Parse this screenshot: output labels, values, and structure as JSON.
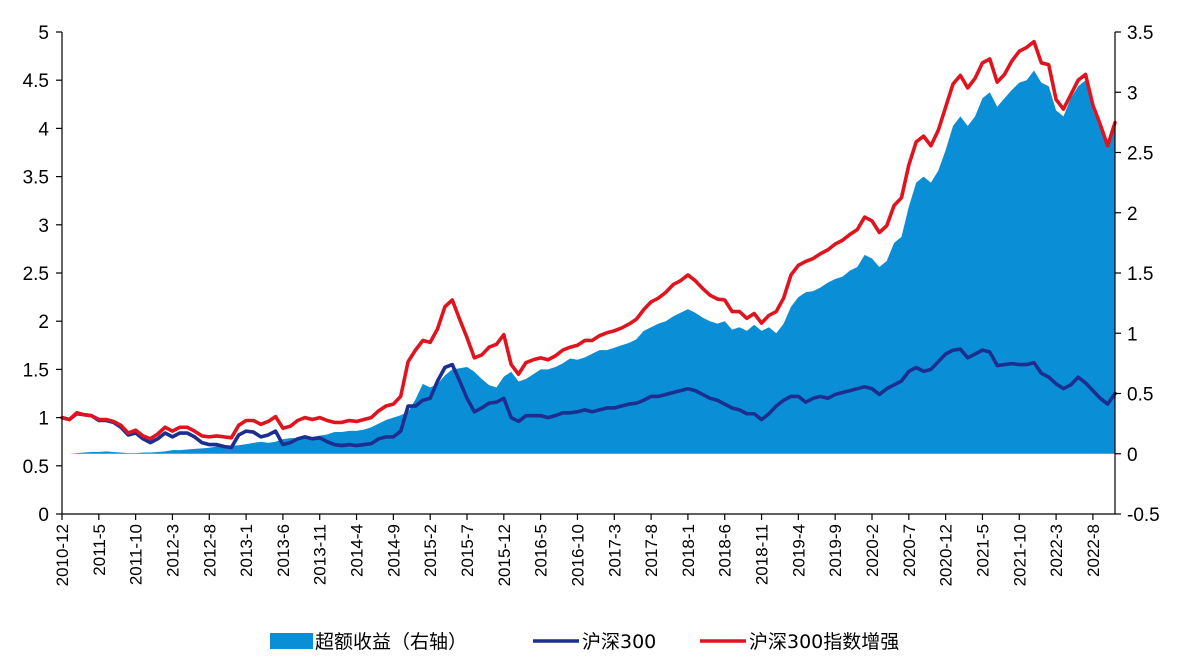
{
  "chart_data": {
    "type": "line",
    "title": "",
    "xlabel": "",
    "ylabel": "",
    "y_left": {
      "min": 0,
      "max": 5,
      "ticks": [
        0,
        0.5,
        1,
        1.5,
        2,
        2.5,
        3,
        3.5,
        4,
        4.5,
        5
      ],
      "tick_labels": [
        "0",
        "0.5",
        "1",
        "1.5",
        "2",
        "2.5",
        "3",
        "3.5",
        "4",
        "4.5",
        "5"
      ]
    },
    "y_right": {
      "min": -0.5,
      "max": 3.5,
      "ticks": [
        -0.5,
        0,
        0.5,
        1,
        1.5,
        2,
        2.5,
        3,
        3.5
      ],
      "tick_labels": [
        "-0.5",
        "0",
        "0.5",
        "1",
        "1.5",
        "2",
        "2.5",
        "3",
        "3.5"
      ]
    },
    "x_tick_labels": [
      "2010-12",
      "2011-5",
      "2011-10",
      "2012-3",
      "2012-8",
      "2013-1",
      "2013-6",
      "2013-11",
      "2014-4",
      "2014-9",
      "2015-2",
      "2015-7",
      "2015-12",
      "2016-5",
      "2016-10",
      "2017-3",
      "2017-8",
      "2018-1",
      "2018-6",
      "2018-11",
      "2019-4",
      "2019-9",
      "2020-2",
      "2020-7",
      "2020-12",
      "2021-5",
      "2021-10",
      "2022-3",
      "2022-8"
    ],
    "x_months": [
      "2010-12",
      "2011-1",
      "2011-2",
      "2011-3",
      "2011-4",
      "2011-5",
      "2011-6",
      "2011-7",
      "2011-8",
      "2011-9",
      "2011-10",
      "2011-11",
      "2011-12",
      "2012-1",
      "2012-2",
      "2012-3",
      "2012-4",
      "2012-5",
      "2012-6",
      "2012-7",
      "2012-8",
      "2012-9",
      "2012-10",
      "2012-11",
      "2012-12",
      "2013-1",
      "2013-2",
      "2013-3",
      "2013-4",
      "2013-5",
      "2013-6",
      "2013-7",
      "2013-8",
      "2013-9",
      "2013-10",
      "2013-11",
      "2013-12",
      "2014-1",
      "2014-2",
      "2014-3",
      "2014-4",
      "2014-5",
      "2014-6",
      "2014-7",
      "2014-8",
      "2014-9",
      "2014-10",
      "2014-11",
      "2014-12",
      "2015-1",
      "2015-2",
      "2015-3",
      "2015-4",
      "2015-5",
      "2015-6",
      "2015-7",
      "2015-8",
      "2015-9",
      "2015-10",
      "2015-11",
      "2015-12",
      "2016-1",
      "2016-2",
      "2016-3",
      "2016-4",
      "2016-5",
      "2016-6",
      "2016-7",
      "2016-8",
      "2016-9",
      "2016-10",
      "2016-11",
      "2016-12",
      "2017-1",
      "2017-2",
      "2017-3",
      "2017-4",
      "2017-5",
      "2017-6",
      "2017-7",
      "2017-8",
      "2017-9",
      "2017-10",
      "2017-11",
      "2017-12",
      "2018-1",
      "2018-2",
      "2018-3",
      "2018-4",
      "2018-5",
      "2018-6",
      "2018-7",
      "2018-8",
      "2018-9",
      "2018-10",
      "2018-11",
      "2018-12",
      "2019-1",
      "2019-2",
      "2019-3",
      "2019-4",
      "2019-5",
      "2019-6",
      "2019-7",
      "2019-8",
      "2019-9",
      "2019-10",
      "2019-11",
      "2019-12",
      "2020-1",
      "2020-2",
      "2020-3",
      "2020-4",
      "2020-5",
      "2020-6",
      "2020-7",
      "2020-8",
      "2020-9",
      "2020-10",
      "2020-11",
      "2020-12",
      "2021-1",
      "2021-2",
      "2021-3",
      "2021-4",
      "2021-5",
      "2021-6",
      "2021-7",
      "2021-8",
      "2021-9",
      "2021-10",
      "2021-11",
      "2021-12",
      "2022-1",
      "2022-2",
      "2022-3",
      "2022-4",
      "2022-5",
      "2022-6",
      "2022-7",
      "2022-8",
      "2022-9",
      "2022-10",
      "2022-11"
    ],
    "legend_position": "bottom",
    "grid": false,
    "series": [
      {
        "name": "超额收益（右轴）",
        "type": "area",
        "axis": "right",
        "color": "#0a8fd6",
        "values": [
          0,
          0,
          0.005,
          0.01,
          0.015,
          0.015,
          0.02,
          0.015,
          0.01,
          0.005,
          0.005,
          0.01,
          0.01,
          0.015,
          0.02,
          0.03,
          0.03,
          0.035,
          0.04,
          0.045,
          0.05,
          0.06,
          0.06,
          0.065,
          0.07,
          0.08,
          0.09,
          0.1,
          0.09,
          0.1,
          0.12,
          0.13,
          0.13,
          0.14,
          0.14,
          0.15,
          0.16,
          0.18,
          0.18,
          0.19,
          0.19,
          0.2,
          0.22,
          0.25,
          0.28,
          0.3,
          0.32,
          0.35,
          0.45,
          0.58,
          0.55,
          0.58,
          0.65,
          0.7,
          0.71,
          0.72,
          0.68,
          0.62,
          0.57,
          0.55,
          0.64,
          0.68,
          0.6,
          0.62,
          0.66,
          0.7,
          0.7,
          0.72,
          0.75,
          0.79,
          0.78,
          0.8,
          0.83,
          0.86,
          0.86,
          0.88,
          0.9,
          0.92,
          0.95,
          1.02,
          1.05,
          1.08,
          1.1,
          1.14,
          1.17,
          1.2,
          1.17,
          1.13,
          1.1,
          1.08,
          1.1,
          1.03,
          1.05,
          1.02,
          1.07,
          1.02,
          1.05,
          1.0,
          1.08,
          1.22,
          1.3,
          1.34,
          1.35,
          1.38,
          1.42,
          1.45,
          1.47,
          1.52,
          1.55,
          1.65,
          1.62,
          1.55,
          1.6,
          1.75,
          1.8,
          2.05,
          2.25,
          2.3,
          2.25,
          2.35,
          2.52,
          2.72,
          2.8,
          2.72,
          2.8,
          2.95,
          3.0,
          2.88,
          2.95,
          3.02,
          3.08,
          3.1,
          3.18,
          3.08,
          3.05,
          2.85,
          2.8,
          2.95,
          3.05,
          3.1,
          2.85,
          2.7,
          2.6,
          2.72
        ]
      },
      {
        "name": "沪深300",
        "type": "line",
        "axis": "left",
        "color": "#1c2e8f",
        "values": [
          1.0,
          0.98,
          1.04,
          1.03,
          1.02,
          0.97,
          0.97,
          0.95,
          0.9,
          0.82,
          0.84,
          0.78,
          0.74,
          0.78,
          0.84,
          0.8,
          0.84,
          0.84,
          0.8,
          0.74,
          0.72,
          0.72,
          0.7,
          0.69,
          0.82,
          0.86,
          0.85,
          0.8,
          0.82,
          0.86,
          0.72,
          0.74,
          0.78,
          0.8,
          0.78,
          0.79,
          0.75,
          0.72,
          0.71,
          0.72,
          0.71,
          0.72,
          0.73,
          0.78,
          0.8,
          0.8,
          0.86,
          1.12,
          1.12,
          1.18,
          1.2,
          1.38,
          1.52,
          1.55,
          1.38,
          1.2,
          1.06,
          1.1,
          1.15,
          1.16,
          1.2,
          1.0,
          0.96,
          1.02,
          1.02,
          1.02,
          1.0,
          1.02,
          1.05,
          1.05,
          1.06,
          1.08,
          1.06,
          1.08,
          1.1,
          1.1,
          1.12,
          1.14,
          1.15,
          1.18,
          1.22,
          1.22,
          1.24,
          1.26,
          1.28,
          1.3,
          1.28,
          1.24,
          1.2,
          1.18,
          1.14,
          1.1,
          1.08,
          1.04,
          1.04,
          0.98,
          1.04,
          1.12,
          1.18,
          1.22,
          1.22,
          1.16,
          1.2,
          1.22,
          1.2,
          1.24,
          1.26,
          1.28,
          1.3,
          1.32,
          1.3,
          1.24,
          1.3,
          1.34,
          1.38,
          1.48,
          1.52,
          1.48,
          1.5,
          1.58,
          1.66,
          1.7,
          1.71,
          1.62,
          1.66,
          1.7,
          1.68,
          1.54,
          1.55,
          1.56,
          1.55,
          1.55,
          1.57,
          1.46,
          1.42,
          1.35,
          1.3,
          1.34,
          1.42,
          1.36,
          1.28,
          1.2,
          1.14,
          1.25
        ]
      },
      {
        "name": "沪深300指数增强",
        "type": "line",
        "axis": "left",
        "color": "#e0141e",
        "values": [
          1.0,
          0.98,
          1.05,
          1.03,
          1.02,
          0.98,
          0.98,
          0.96,
          0.92,
          0.84,
          0.87,
          0.81,
          0.78,
          0.83,
          0.9,
          0.86,
          0.9,
          0.9,
          0.86,
          0.81,
          0.8,
          0.81,
          0.8,
          0.79,
          0.92,
          0.97,
          0.97,
          0.93,
          0.96,
          1.01,
          0.89,
          0.91,
          0.97,
          1.0,
          0.98,
          1.0,
          0.97,
          0.95,
          0.95,
          0.97,
          0.96,
          0.98,
          1.0,
          1.07,
          1.12,
          1.14,
          1.22,
          1.58,
          1.7,
          1.8,
          1.78,
          1.92,
          2.15,
          2.22,
          2.02,
          1.83,
          1.62,
          1.65,
          1.73,
          1.76,
          1.86,
          1.55,
          1.45,
          1.57,
          1.6,
          1.62,
          1.6,
          1.64,
          1.7,
          1.73,
          1.75,
          1.8,
          1.8,
          1.85,
          1.88,
          1.9,
          1.93,
          1.97,
          2.02,
          2.12,
          2.2,
          2.24,
          2.3,
          2.38,
          2.42,
          2.48,
          2.42,
          2.34,
          2.27,
          2.23,
          2.22,
          2.1,
          2.1,
          2.03,
          2.08,
          1.98,
          2.06,
          2.1,
          2.24,
          2.48,
          2.58,
          2.62,
          2.65,
          2.7,
          2.74,
          2.8,
          2.84,
          2.9,
          2.95,
          3.08,
          3.04,
          2.92,
          2.99,
          3.2,
          3.28,
          3.62,
          3.86,
          3.92,
          3.82,
          3.98,
          4.22,
          4.46,
          4.55,
          4.42,
          4.52,
          4.68,
          4.72,
          4.48,
          4.56,
          4.7,
          4.8,
          4.84,
          4.9,
          4.68,
          4.66,
          4.3,
          4.2,
          4.35,
          4.5,
          4.56,
          4.24,
          4.04,
          3.82,
          4.06
        ]
      }
    ],
    "legend": [
      "超额收益（右轴）",
      "沪深300",
      "沪深300指数增强"
    ]
  }
}
